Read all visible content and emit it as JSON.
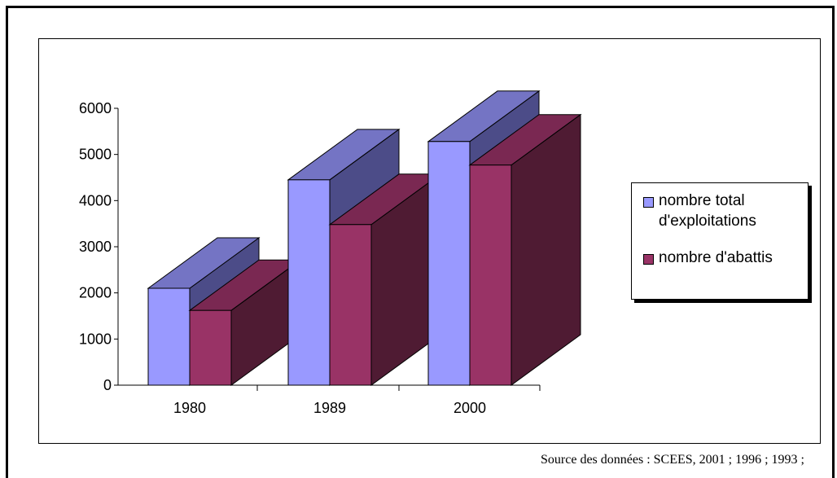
{
  "chart_data": {
    "type": "bar",
    "style": "3d-clustered-column",
    "categories": [
      "1980",
      "1989",
      "2000"
    ],
    "series": [
      {
        "name": "nombre total d'exploitations",
        "values": [
          2100,
          4450,
          5280
        ],
        "color": "#9999ff"
      },
      {
        "name": "nombre d'abattis",
        "values": [
          1620,
          3480,
          4770
        ],
        "color": "#993366"
      }
    ],
    "yticks": [
      "0",
      "1000",
      "2000",
      "3000",
      "4000",
      "5000",
      "6000"
    ],
    "ylim": [
      0,
      6000
    ],
    "legend_position": "right",
    "grid": false
  },
  "legend": {
    "item1_line1": "nombre total",
    "item1_line2": "d'exploitations",
    "item2": "nombre d'abattis"
  },
  "source_note": "Source des données : SCEES, 2001 ; 1996 ; 1993 ;"
}
